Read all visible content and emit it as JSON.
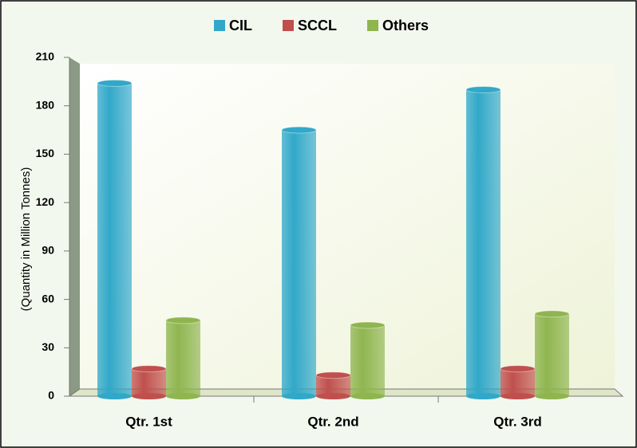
{
  "chart_data": {
    "type": "bar",
    "y_label": "(Quantity in Million Tonnes)",
    "categories": [
      "Qtr. 1st",
      "Qtr. 2nd",
      "Qtr. 3rd"
    ],
    "series": [
      {
        "name": "CIL",
        "color": "#31a8c9",
        "values": [
          194,
          165,
          190
        ]
      },
      {
        "name": "SCCL",
        "color": "#c0504d",
        "values": [
          17,
          13,
          17
        ]
      },
      {
        "name": "Others",
        "color": "#8fb54f",
        "values": [
          47,
          44,
          51
        ]
      }
    ],
    "ylim": [
      0,
      210
    ],
    "yticks": [
      0,
      30,
      60,
      90,
      120,
      150,
      180,
      210
    ]
  }
}
